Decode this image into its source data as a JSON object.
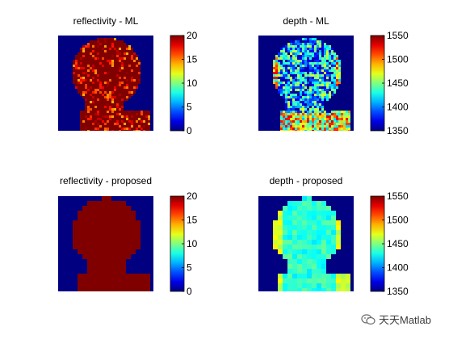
{
  "watermark": {
    "text": "天天Matlab",
    "icon": "wechat-bubble-icon"
  },
  "colormap": "jet",
  "chart_data": [
    {
      "type": "heatmap",
      "title": "reflectivity - ML",
      "colorbar": {
        "range": [
          0,
          20
        ],
        "ticks": [
          0,
          5,
          10,
          15,
          20
        ]
      },
      "background_value": 0,
      "subject_value": 20,
      "texture": "noisy"
    },
    {
      "type": "heatmap",
      "title": "depth - ML",
      "colorbar": {
        "range": [
          1350,
          1550
        ],
        "ticks": [
          1350,
          1400,
          1450,
          1500,
          1550
        ]
      },
      "background_value": 1350,
      "subject_value": 1400,
      "texture": "noisy"
    },
    {
      "type": "heatmap",
      "title": "reflectivity - proposed",
      "colorbar": {
        "range": [
          0,
          20
        ],
        "ticks": [
          0,
          5,
          10,
          15,
          20
        ]
      },
      "background_value": 0,
      "subject_value": 20,
      "texture": "smooth"
    },
    {
      "type": "heatmap",
      "title": "depth - proposed",
      "colorbar": {
        "range": [
          1350,
          1550
        ],
        "ticks": [
          1350,
          1400,
          1450,
          1500,
          1550
        ]
      },
      "background_value": 1350,
      "subject_value": 1420,
      "texture": "smooth"
    }
  ]
}
